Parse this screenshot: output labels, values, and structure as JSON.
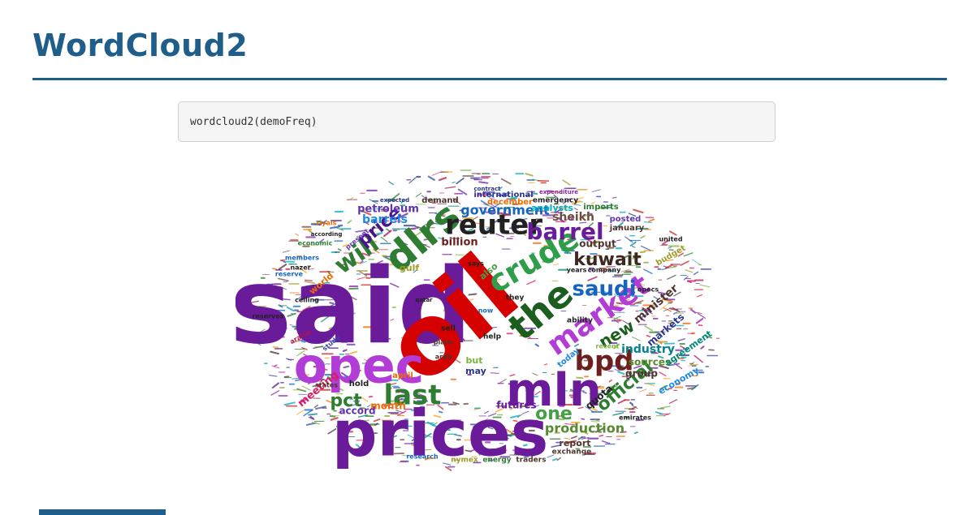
{
  "page": {
    "title": "WordCloud2",
    "code": "wordcloud2(demoFreq)"
  },
  "cloud": {
    "palette": [
      "#6a1b9a",
      "#2e7d32",
      "#c62828",
      "#1565c0",
      "#8e24aa",
      "#ef6c00",
      "#00897b",
      "#4e342e",
      "#5e35b1",
      "#9e9d24",
      "#ad1457",
      "#283593",
      "#00acc1",
      "#6d4c41",
      "#7cb342",
      "#d81b60",
      "#3949ab",
      "#f9a825"
    ],
    "words": [
      {
        "text": "said",
        "size": 128,
        "rot": 0,
        "color": "#6a1b9a"
      },
      {
        "text": "oil",
        "size": 120,
        "rot": -40,
        "color": "#d50000"
      },
      {
        "text": "prices",
        "size": 78,
        "rot": 0,
        "color": "#6a1b9a"
      },
      {
        "text": "opec",
        "size": 60,
        "rot": 0,
        "color": "#b23cd6"
      },
      {
        "text": "mln",
        "size": 56,
        "rot": 0,
        "color": "#6a1b9a"
      },
      {
        "text": "dlrs",
        "size": 48,
        "rot": -40,
        "color": "#2e7d32"
      },
      {
        "text": "the",
        "size": 46,
        "rot": -40,
        "color": "#1b5e20"
      },
      {
        "text": "crude",
        "size": 38,
        "rot": -30,
        "color": "#2e9e4a"
      },
      {
        "text": "market",
        "size": 36,
        "rot": -35,
        "color": "#b23cd6"
      },
      {
        "text": "reuter",
        "size": 34,
        "rot": 0,
        "color": "#212121"
      },
      {
        "text": "last",
        "size": 34,
        "rot": 0,
        "color": "#2e7d32"
      },
      {
        "text": "bpd",
        "size": 34,
        "rot": 0,
        "color": "#6d1f1f"
      },
      {
        "text": "will",
        "size": 30,
        "rot": -35,
        "color": "#2e7d32"
      },
      {
        "text": "barrel",
        "size": 28,
        "rot": 0,
        "color": "#6a1b9a"
      },
      {
        "text": "saudi",
        "size": 26,
        "rot": 0,
        "color": "#1565c0"
      },
      {
        "text": "kuwait",
        "size": 22,
        "rot": 0,
        "color": "#3e2723"
      },
      {
        "text": "price",
        "size": 22,
        "rot": -40,
        "color": "#4a148c"
      },
      {
        "text": "official",
        "size": 22,
        "rot": -40,
        "color": "#2e7d32"
      },
      {
        "text": "new",
        "size": 20,
        "rot": -30,
        "color": "#1b5e20"
      },
      {
        "text": "one",
        "size": 22,
        "rot": 0,
        "color": "#43a047"
      },
      {
        "text": "pct",
        "size": 22,
        "rot": 0,
        "color": "#2e7d32"
      },
      {
        "text": "production",
        "size": 16,
        "rot": 0,
        "color": "#558b2f"
      },
      {
        "text": "government",
        "size": 16,
        "rot": 0,
        "color": "#1565c0"
      },
      {
        "text": "industry",
        "size": 14,
        "rot": 0,
        "color": "#00838f"
      },
      {
        "text": "minister",
        "size": 14,
        "rot": -40,
        "color": "#4e342e"
      },
      {
        "text": "sheikh",
        "size": 14,
        "rot": 0,
        "color": "#6d4c41"
      },
      {
        "text": "barrels",
        "size": 14,
        "rot": 0,
        "color": "#1e88e5"
      },
      {
        "text": "petroleum",
        "size": 13,
        "rot": 0,
        "color": "#5e35b1"
      },
      {
        "text": "billion",
        "size": 13,
        "rot": 0,
        "color": "#6d1f1f"
      },
      {
        "text": "output",
        "size": 12,
        "rot": 0,
        "color": "#4e342e"
      },
      {
        "text": "meeting",
        "size": 13,
        "rot": -40,
        "color": "#d81b60"
      },
      {
        "text": "sources",
        "size": 12,
        "rot": 0,
        "color": "#558b2f"
      },
      {
        "text": "group",
        "size": 12,
        "rot": 0,
        "color": "#4e342e"
      },
      {
        "text": "markets",
        "size": 12,
        "rot": -40,
        "color": "#283593"
      },
      {
        "text": "quota",
        "size": 12,
        "rot": -40,
        "color": "#212121"
      },
      {
        "text": "futures",
        "size": 12,
        "rot": 0,
        "color": "#6a1b9a"
      },
      {
        "text": "report",
        "size": 11,
        "rot": 0,
        "color": "#4e342e"
      },
      {
        "text": "month",
        "size": 12,
        "rot": 0,
        "color": "#ef6c00"
      },
      {
        "text": "accord",
        "size": 12,
        "rot": 0,
        "color": "#5e35b1"
      },
      {
        "text": "economy",
        "size": 11,
        "rot": -30,
        "color": "#1e88e5"
      },
      {
        "text": "agreement",
        "size": 11,
        "rot": -35,
        "color": "#00897b"
      },
      {
        "text": "gulf",
        "size": 11,
        "rot": 0,
        "color": "#9e9d24"
      },
      {
        "text": "world",
        "size": 11,
        "rot": -40,
        "color": "#ef6c00"
      },
      {
        "text": "also",
        "size": 11,
        "rot": -40,
        "color": "#43a047"
      },
      {
        "text": "analysts",
        "size": 11,
        "rot": 0,
        "color": "#00acc1"
      },
      {
        "text": "international",
        "size": 10,
        "rot": 0,
        "color": "#283593"
      },
      {
        "text": "demand",
        "size": 10,
        "rot": 0,
        "color": "#4e342e"
      },
      {
        "text": "december",
        "size": 10,
        "rot": 0,
        "color": "#ef6c00"
      },
      {
        "text": "emergency",
        "size": 9,
        "rot": 0,
        "color": "#212121"
      },
      {
        "text": "january",
        "size": 10,
        "rot": 0,
        "color": "#4e342e"
      },
      {
        "text": "posted",
        "size": 10,
        "rot": 0,
        "color": "#5e35b1"
      },
      {
        "text": "imports",
        "size": 10,
        "rot": 0,
        "color": "#2e7d32"
      },
      {
        "text": "budget",
        "size": 10,
        "rot": -30,
        "color": "#9e9d24"
      },
      {
        "text": "exchange",
        "size": 9,
        "rot": 0,
        "color": "#4e342e"
      },
      {
        "text": "energy",
        "size": 9,
        "rot": 0,
        "color": "#2e7d32"
      },
      {
        "text": "traders",
        "size": 9,
        "rot": 0,
        "color": "#4e342e"
      },
      {
        "text": "nymex",
        "size": 9,
        "rot": 0,
        "color": "#9e9d24"
      },
      {
        "text": "research",
        "size": 8,
        "rot": 0,
        "color": "#1565c0"
      },
      {
        "text": "may",
        "size": 11,
        "rot": 0,
        "color": "#283593"
      },
      {
        "text": "but",
        "size": 11,
        "rot": 0,
        "color": "#7cb342"
      },
      {
        "text": "hold",
        "size": 10,
        "rot": 0,
        "color": "#212121"
      },
      {
        "text": "april",
        "size": 10,
        "rot": 0,
        "color": "#ef6c00"
      },
      {
        "text": "today",
        "size": 10,
        "rot": -40,
        "color": "#1e88e5"
      },
      {
        "text": "help",
        "size": 9,
        "rot": 0,
        "color": "#212121"
      },
      {
        "text": "sell",
        "size": 9,
        "rot": 0,
        "color": "#212121"
      },
      {
        "text": "plans",
        "size": 8,
        "rot": 0,
        "color": "#4e342e"
      },
      {
        "text": "arab",
        "size": 8,
        "rot": 0,
        "color": "#4e342e"
      },
      {
        "text": "states",
        "size": 8,
        "rot": 0,
        "color": "#4e342e"
      },
      {
        "text": "emirates",
        "size": 8,
        "rot": 0,
        "color": "#212121"
      },
      {
        "text": "united",
        "size": 8,
        "rot": 0,
        "color": "#212121"
      },
      {
        "text": "opecs",
        "size": 8,
        "rot": 0,
        "color": "#212121"
      },
      {
        "text": "company",
        "size": 8,
        "rot": 0,
        "color": "#212121"
      },
      {
        "text": "years",
        "size": 8,
        "rot": 0,
        "color": "#212121"
      },
      {
        "text": "they",
        "size": 9,
        "rot": 0,
        "color": "#212121"
      },
      {
        "text": "says",
        "size": 8,
        "rot": 0,
        "color": "#212121"
      },
      {
        "text": "ability",
        "size": 9,
        "rot": 0,
        "color": "#212121"
      },
      {
        "text": "recent",
        "size": 8,
        "rot": 0,
        "color": "#7cb342"
      },
      {
        "text": "reserve",
        "size": 8,
        "rot": 0,
        "color": "#1565c0"
      },
      {
        "text": "reserves",
        "size": 8,
        "rot": 0,
        "color": "#212121"
      },
      {
        "text": "members",
        "size": 8,
        "rot": 0,
        "color": "#1565c0"
      },
      {
        "text": "economic",
        "size": 8,
        "rot": 0,
        "color": "#2e7d32"
      },
      {
        "text": "nazer",
        "size": 8,
        "rot": 0,
        "color": "#212121"
      },
      {
        "text": "riyals",
        "size": 8,
        "rot": 0,
        "color": "#ef6c00"
      },
      {
        "text": "present",
        "size": 8,
        "rot": -40,
        "color": "#5e35b1"
      },
      {
        "text": "ceiling",
        "size": 8,
        "rot": 0,
        "color": "#212121"
      },
      {
        "text": "qatar",
        "size": 7,
        "rot": 0,
        "color": "#212121"
      },
      {
        "text": "now",
        "size": 8,
        "rot": 0,
        "color": "#1565c0"
      },
      {
        "text": "expected",
        "size": 7,
        "rot": 0,
        "color": "#283593"
      },
      {
        "text": "according",
        "size": 7,
        "rot": 0,
        "color": "#212121"
      },
      {
        "text": "arabia",
        "size": 8,
        "rot": -30,
        "color": "#ad1457"
      },
      {
        "text": "study",
        "size": 8,
        "rot": -40,
        "color": "#3949ab"
      },
      {
        "text": "contract",
        "size": 7,
        "rot": 0,
        "color": "#283593"
      },
      {
        "text": "expenditure",
        "size": 7,
        "rot": 0,
        "color": "#8e24aa"
      }
    ]
  }
}
